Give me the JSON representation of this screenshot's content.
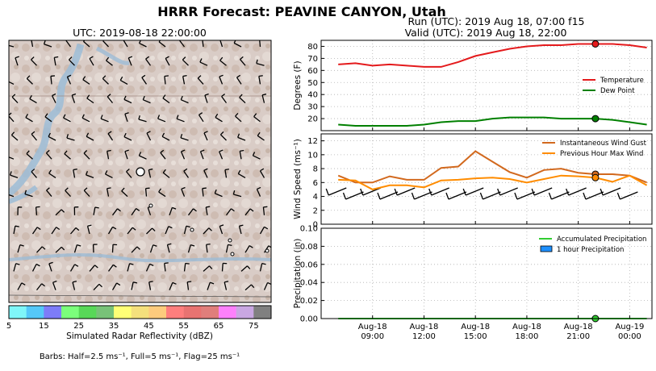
{
  "figure": {
    "title": "HRRR Forecast: PEAVINE CANYON, Utah",
    "run_label": "Run (UTC): 2019 Aug 18, 07:00 f15",
    "valid_label": "Valid (UTC): 2019 Aug 18, 22:00"
  },
  "map": {
    "title": "UTC: 2019-08-18 22:00:00",
    "colorbar": {
      "label": "Simulated Radar Reflectivity (dBZ)",
      "ticks": [
        "5",
        "15",
        "25",
        "35",
        "45",
        "55",
        "65",
        "75"
      ],
      "colors": [
        "#7ff6f9",
        "#55c8f8",
        "#7d7cf8",
        "#7bff7b",
        "#58d858",
        "#78c278",
        "#ffff76",
        "#f4e07c",
        "#fdcb7d",
        "#fe7e7d",
        "#e87371",
        "#e07e7b",
        "#fd80fb",
        "#c9a7e2",
        "#808080"
      ]
    },
    "barbs_note": "Barbs: Half=2.5 ms⁻¹, Full=5 ms⁻¹, Flag=25 ms⁻¹"
  },
  "chart_data": [
    {
      "type": "line",
      "ylabel": "Degrees (F)",
      "ylim": [
        10,
        85
      ],
      "yticks": [
        20,
        30,
        40,
        50,
        60,
        70,
        80
      ],
      "grid": true,
      "legend": "right",
      "series": [
        {
          "name": "Temperature",
          "color": "#e41a1c",
          "x": [
            7,
            8,
            9,
            10,
            11,
            12,
            13,
            14,
            15,
            16,
            17,
            18,
            19,
            20,
            21,
            22,
            23,
            24,
            25
          ],
          "values": [
            65,
            66,
            64,
            65,
            64,
            63,
            63,
            67,
            72,
            75,
            78,
            80,
            81,
            81,
            82,
            82,
            82,
            81,
            79
          ]
        },
        {
          "name": "Dew Point",
          "color": "#008000",
          "x": [
            7,
            8,
            9,
            10,
            11,
            12,
            13,
            14,
            15,
            16,
            17,
            18,
            19,
            20,
            21,
            22,
            23,
            24,
            25
          ],
          "values": [
            15,
            14,
            14,
            14,
            14,
            15,
            17,
            18,
            18,
            20,
            21,
            21,
            21,
            20,
            20,
            20,
            19,
            17,
            15
          ]
        }
      ],
      "marker_x": 22
    },
    {
      "type": "line",
      "ylabel": "Wind Speed (ms⁻¹)",
      "ylim": [
        0,
        13
      ],
      "yticks": [
        0,
        2,
        4,
        6,
        8,
        10,
        12
      ],
      "grid": true,
      "legend": "top-right",
      "series": [
        {
          "name": "Instantaneous Wind Gust",
          "color": "#d2691e",
          "x": [
            7,
            8,
            9,
            10,
            11,
            12,
            13,
            14,
            15,
            16,
            17,
            18,
            19,
            20,
            21,
            22,
            23,
            24,
            25
          ],
          "values": [
            7.0,
            6.0,
            6.0,
            6.9,
            6.4,
            6.4,
            8.1,
            8.3,
            10.5,
            9.0,
            7.5,
            6.7,
            7.8,
            8.0,
            7.4,
            7.2,
            7.2,
            7.0,
            6.0
          ]
        },
        {
          "name": "Previous Hour Max Wind",
          "color": "#ff8c00",
          "x": [
            7,
            8,
            9,
            10,
            11,
            12,
            13,
            14,
            15,
            16,
            17,
            18,
            19,
            20,
            21,
            22,
            23,
            24,
            25
          ],
          "values": [
            6.4,
            6.3,
            5.0,
            5.6,
            5.6,
            5.3,
            6.3,
            6.4,
            6.6,
            6.7,
            6.5,
            6.0,
            6.5,
            7.0,
            6.9,
            6.7,
            6.1,
            7.0,
            5.6
          ]
        }
      ],
      "barbs_x": [
        7,
        8,
        9,
        10,
        11,
        12,
        13,
        14,
        15,
        16,
        17,
        18,
        19,
        20,
        21,
        22,
        23,
        24
      ],
      "marker_x": 22
    },
    {
      "type": "bar",
      "ylabel": "Precipitation (in)",
      "ylim": [
        0,
        0.1
      ],
      "yticks": [
        "0.00",
        "0.02",
        "0.04",
        "0.06",
        "0.08",
        "0.10"
      ],
      "grid": true,
      "legend": "top-right",
      "series": [
        {
          "name": "Accumulated Precipitation",
          "color": "#32cd32",
          "values": [
            0,
            0,
            0,
            0,
            0,
            0,
            0,
            0,
            0,
            0,
            0,
            0,
            0,
            0,
            0,
            0,
            0,
            0,
            0
          ]
        },
        {
          "name": "1 hour Precipitation",
          "color": "#1e90ff",
          "values": [
            0,
            0,
            0,
            0,
            0,
            0,
            0,
            0,
            0,
            0,
            0,
            0,
            0,
            0,
            0,
            0,
            0,
            0,
            0
          ]
        }
      ],
      "x": [
        7,
        8,
        9,
        10,
        11,
        12,
        13,
        14,
        15,
        16,
        17,
        18,
        19,
        20,
        21,
        22,
        23,
        24,
        25
      ],
      "marker_x": 22
    }
  ],
  "x_axis": {
    "xlim": [
      6,
      25.3
    ],
    "ticks": [
      {
        "x": 9,
        "label": "Aug-18\n09:00"
      },
      {
        "x": 12,
        "label": "Aug-18\n12:00"
      },
      {
        "x": 15,
        "label": "Aug-18\n15:00"
      },
      {
        "x": 18,
        "label": "Aug-18\n18:00"
      },
      {
        "x": 21,
        "label": "Aug-18\n21:00"
      },
      {
        "x": 24,
        "label": "Aug-19\n00:00"
      }
    ]
  }
}
